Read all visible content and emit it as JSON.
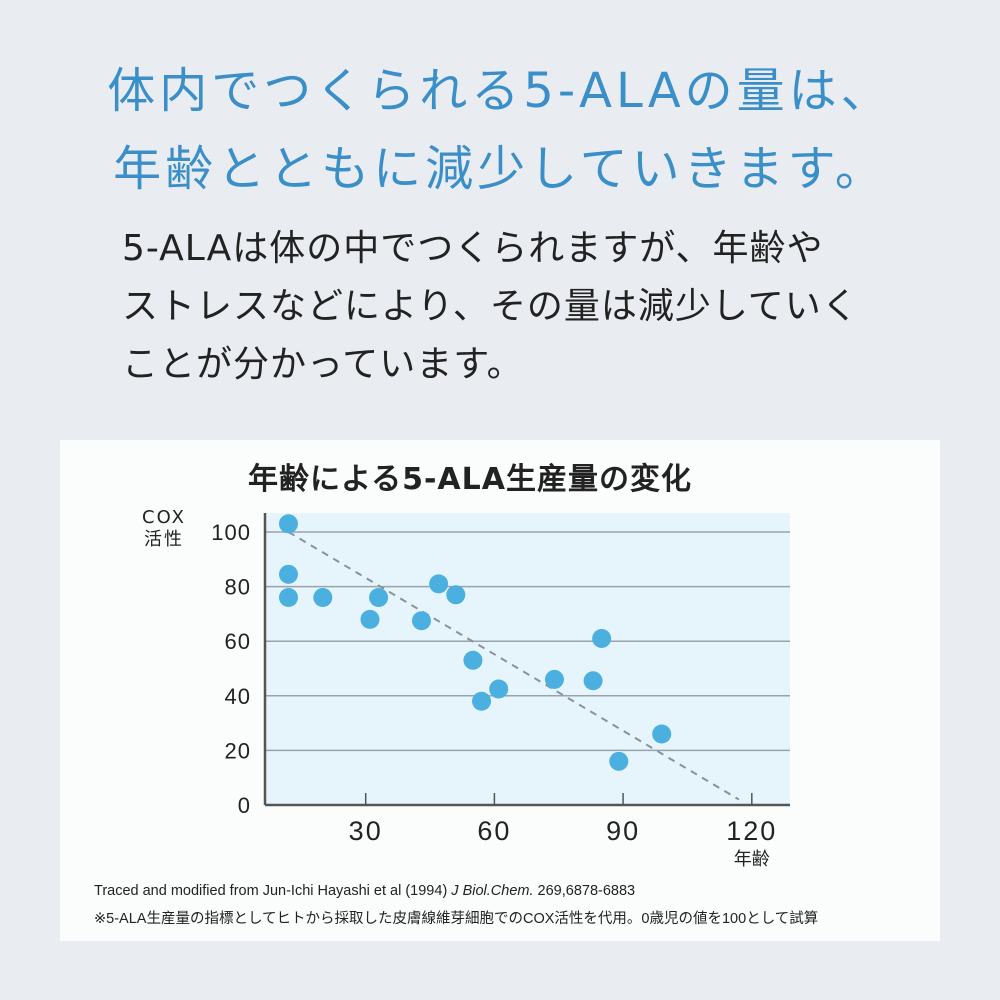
{
  "headline": {
    "line1": "体内でつくられる5-ALAの量は、",
    "line2": "年齢とともに減少していきます。"
  },
  "lead": {
    "line1": "5-ALAは体の中でつくられますが、年齢や",
    "line2": "ストレスなどにより、その量は減少していく",
    "line3": "ことが分かっています。"
  },
  "colors": {
    "headline": "#3a8fc9",
    "point": "#4bb0e0",
    "plot_bg": "#e6f4fc",
    "grid": "#9aa3aa",
    "trend": "#8a9298"
  },
  "chart_data": {
    "type": "scatter",
    "title": "年齢による5-ALA生産量の変化",
    "xlabel": "年齢",
    "ylabel": "COX 活性",
    "xlim": [
      6,
      128
    ],
    "ylim": [
      0,
      105
    ],
    "xticks": [
      30,
      60,
      90,
      120
    ],
    "yticks": [
      0,
      20,
      40,
      60,
      80,
      100
    ],
    "grid": "horizontal",
    "points": [
      {
        "x": 12,
        "y": 103
      },
      {
        "x": 12,
        "y": 84.5
      },
      {
        "x": 12,
        "y": 76
      },
      {
        "x": 20,
        "y": 76
      },
      {
        "x": 31,
        "y": 68
      },
      {
        "x": 33,
        "y": 76
      },
      {
        "x": 43,
        "y": 67.5
      },
      {
        "x": 47,
        "y": 81
      },
      {
        "x": 51,
        "y": 77
      },
      {
        "x": 55,
        "y": 53
      },
      {
        "x": 57,
        "y": 38
      },
      {
        "x": 61,
        "y": 42.5
      },
      {
        "x": 74,
        "y": 46
      },
      {
        "x": 83,
        "y": 45.5
      },
      {
        "x": 85,
        "y": 61
      },
      {
        "x": 89,
        "y": 16
      },
      {
        "x": 99,
        "y": 26
      }
    ],
    "trendline": {
      "style": "dashed",
      "from": {
        "x": 12,
        "y": 100
      },
      "to": {
        "x": 117,
        "y": 2
      }
    }
  },
  "chart": {
    "title": "年齢による5-ALA生産量の変化",
    "ylabel_line1": "COX",
    "ylabel_line2": "活性",
    "xlabel": "年齢",
    "source_prefix": "Traced and modified from Jun-Ichi Hayashi et al (1994) ",
    "source_journal": "J Biol.Chem.",
    "source_suffix": " 269,6878-6883",
    "note": "※5-ALA生産量の指標としてヒトから採取した皮膚線維芽細胞でのCOX活性を代用。0歳児の値を100として試算"
  }
}
